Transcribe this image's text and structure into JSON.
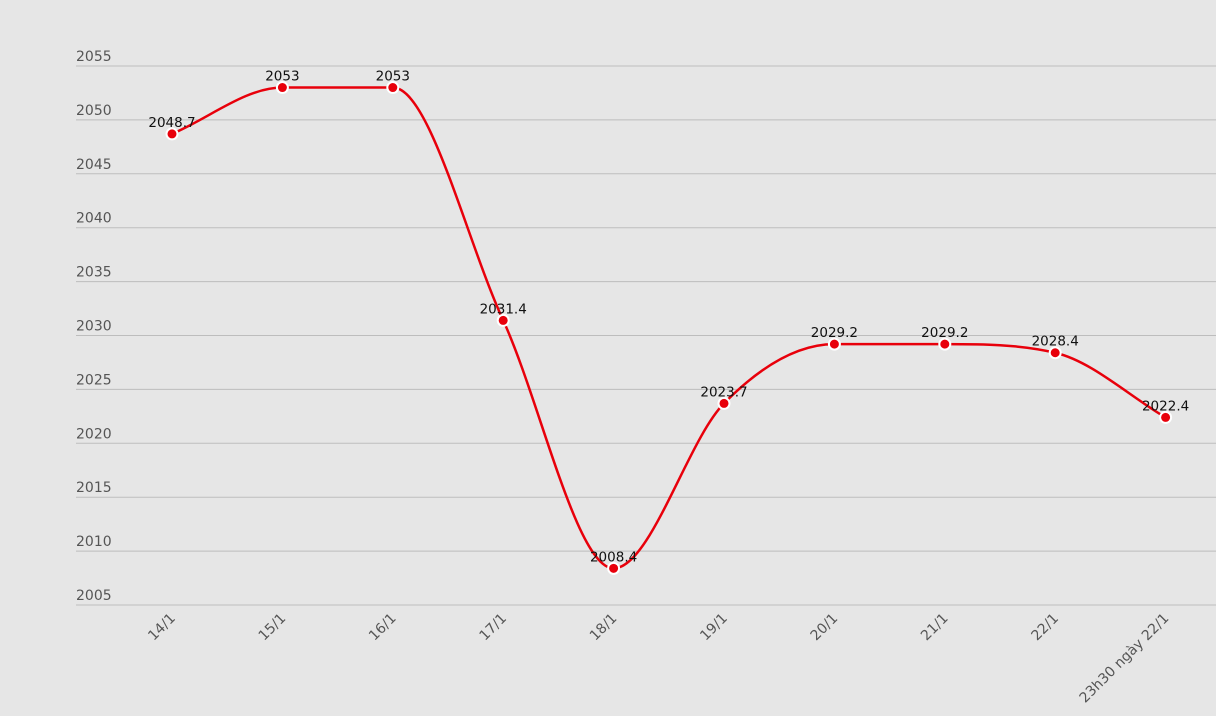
{
  "chart_data": {
    "type": "line",
    "categories": [
      "14/1",
      "15/1",
      "16/1",
      "17/1",
      "18/1",
      "19/1",
      "20/1",
      "21/1",
      "22/1",
      "23h30 ngày 22/1"
    ],
    "series": [
      {
        "values": [
          2048.7,
          2053,
          2053,
          2031.4,
          2008.4,
          2023.7,
          2029.2,
          2029.2,
          2028.4,
          2022.4
        ]
      }
    ],
    "data_labels": [
      "2048.7",
      "2053",
      "2053",
      "2031.4",
      "2008.4",
      "2023.7",
      "2029.2",
      "2029.2",
      "2028.4",
      "2022.4"
    ],
    "y_ticks": [
      "2005",
      "2010",
      "2015",
      "2020",
      "2025",
      "2030",
      "2035",
      "2040",
      "2045",
      "2050",
      "2055"
    ],
    "ylim": [
      2005,
      2055
    ],
    "smooth": true,
    "grid": true,
    "legend": "none",
    "line_color": "#e8000b",
    "point_color": "#e8000b",
    "background": "#e6e6e6"
  }
}
